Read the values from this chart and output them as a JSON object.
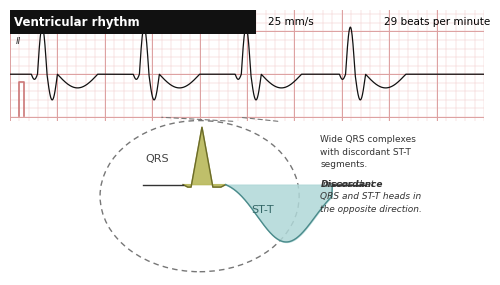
{
  "title": "Ventricular rhythm",
  "speed": "25 mm/s",
  "bpm": "29 beats per minute",
  "title_bg": "#111111",
  "title_color": "#ffffff",
  "ecg_color": "#111111",
  "grid_minor_color": "#f0c8c8",
  "grid_major_color": "#dda0a0",
  "lead_label": "II",
  "lead_color": "#cc7777",
  "qrs_fill": "#b8b85a",
  "qrs_edge": "#6b6b2a",
  "st_fill": "#b0d8d8",
  "st_edge": "#4a8a8a",
  "circle_color": "#777777",
  "annotation_text1_normal": " means that\nQRS and ST-T heads in\nthe opposite direction.",
  "annotation_text1_bold_italic": "Discordance",
  "annotation_text2": "Wide QRS complexes\nwith discordant ST-T\nsegments.",
  "qrs_label": "QRS",
  "st_label": "ST-T"
}
